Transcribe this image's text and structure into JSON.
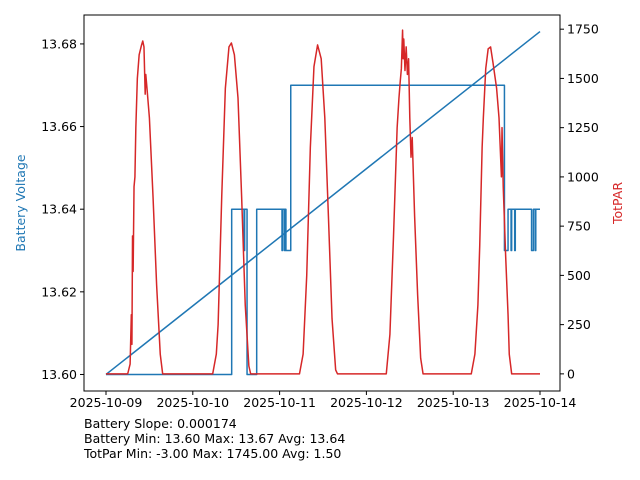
{
  "chart_data": {
    "type": "line",
    "x_tick_labels": [
      "2025-10-09",
      "2025-10-10",
      "2025-10-11",
      "2025-10-12",
      "2025-10-13",
      "2025-10-14"
    ],
    "x_range": [
      "2025-10-09",
      "2025-10-14"
    ],
    "left_axis": {
      "label": "Battery Voltage",
      "color": "#1f77b4",
      "ylim": [
        13.596,
        13.687
      ],
      "ticks": [
        "13.60",
        "13.62",
        "13.64",
        "13.66",
        "13.68"
      ]
    },
    "right_axis": {
      "label": "TotPAR",
      "color": "#d62728",
      "ylim": [
        -87,
        1822
      ],
      "ticks": [
        "0",
        "250",
        "500",
        "750",
        "1000",
        "1250",
        "1500",
        "1750"
      ]
    },
    "grid": false,
    "series": [
      {
        "axis": "left",
        "color": "#1f77b4",
        "style": "step",
        "points": [
          [
            "2025-10-09T00:00",
            13.6
          ],
          [
            "2025-10-10T10:30",
            13.6
          ],
          [
            "2025-10-10T10:45",
            13.64
          ],
          [
            "2025-10-10T14:00",
            13.64
          ],
          [
            "2025-10-10T14:10",
            13.63
          ],
          [
            "2025-10-10T14:20",
            13.64
          ],
          [
            "2025-10-10T14:40",
            13.64
          ],
          [
            "2025-10-10T15:00",
            13.6
          ],
          [
            "2025-10-10T17:30",
            13.6
          ],
          [
            "2025-10-10T17:40",
            13.64
          ],
          [
            "2025-10-11T00:30",
            13.64
          ],
          [
            "2025-10-11T00:40",
            13.63
          ],
          [
            "2025-10-11T00:50",
            13.64
          ],
          [
            "2025-10-11T01:20",
            13.63
          ],
          [
            "2025-10-11T01:30",
            13.64
          ],
          [
            "2025-10-11T01:45",
            13.63
          ],
          [
            "2025-10-11T03:00",
            13.63
          ],
          [
            "2025-10-11T03:05",
            13.67
          ],
          [
            "2025-10-13T14:00",
            13.67
          ],
          [
            "2025-10-13T14:10",
            13.63
          ],
          [
            "2025-10-13T15:00",
            13.63
          ],
          [
            "2025-10-13T15:10",
            13.64
          ],
          [
            "2025-10-13T16:00",
            13.63
          ],
          [
            "2025-10-13T16:10",
            13.64
          ],
          [
            "2025-10-13T17:00",
            13.63
          ],
          [
            "2025-10-13T17:10",
            13.64
          ],
          [
            "2025-10-13T21:30",
            13.64
          ],
          [
            "2025-10-13T21:40",
            13.63
          ],
          [
            "2025-10-13T22:10",
            13.64
          ],
          [
            "2025-10-13T22:40",
            13.63
          ],
          [
            "2025-10-13T22:50",
            13.64
          ],
          [
            "2025-10-14T00:00",
            13.64
          ]
        ]
      },
      {
        "axis": "left",
        "color": "#1f77b4",
        "style": "line",
        "points": [
          [
            "2025-10-09T00:00",
            13.6
          ],
          [
            "2025-10-14T00:00",
            13.683
          ]
        ]
      },
      {
        "axis": "right",
        "color": "#d62728",
        "style": "line",
        "points": [
          [
            "2025-10-09T00:00",
            0
          ],
          [
            "2025-10-09T06:00",
            0
          ],
          [
            "2025-10-09T06:40",
            50
          ],
          [
            "2025-10-09T07:00",
            300
          ],
          [
            "2025-10-09T07:10",
            150
          ],
          [
            "2025-10-09T07:20",
            700
          ],
          [
            "2025-10-09T07:30",
            520
          ],
          [
            "2025-10-09T07:45",
            950
          ],
          [
            "2025-10-09T08:00",
            1000
          ],
          [
            "2025-10-09T08:15",
            1250
          ],
          [
            "2025-10-09T08:40",
            1500
          ],
          [
            "2025-10-09T09:10",
            1620
          ],
          [
            "2025-10-09T09:50",
            1670
          ],
          [
            "2025-10-09T10:10",
            1690
          ],
          [
            "2025-10-09T10:30",
            1660
          ],
          [
            "2025-10-09T10:50",
            1420
          ],
          [
            "2025-10-09T11:00",
            1520
          ],
          [
            "2025-10-09T11:20",
            1450
          ],
          [
            "2025-10-09T12:00",
            1300
          ],
          [
            "2025-10-09T13:00",
            900
          ],
          [
            "2025-10-09T14:00",
            450
          ],
          [
            "2025-10-09T15:00",
            100
          ],
          [
            "2025-10-09T15:40",
            0
          ],
          [
            "2025-10-10T05:30",
            0
          ],
          [
            "2025-10-10T06:30",
            100
          ],
          [
            "2025-10-10T07:00",
            250
          ],
          [
            "2025-10-10T08:00",
            900
          ],
          [
            "2025-10-10T09:00",
            1450
          ],
          [
            "2025-10-10T10:00",
            1660
          ],
          [
            "2025-10-10T10:40",
            1680
          ],
          [
            "2025-10-10T11:30",
            1620
          ],
          [
            "2025-10-10T12:30",
            1400
          ],
          [
            "2025-10-10T13:30",
            900
          ],
          [
            "2025-10-10T14:30",
            350
          ],
          [
            "2025-10-10T15:30",
            40
          ],
          [
            "2025-10-10T16:00",
            0
          ],
          [
            "2025-10-11T05:30",
            0
          ],
          [
            "2025-10-11T06:30",
            100
          ],
          [
            "2025-10-11T07:30",
            500
          ],
          [
            "2025-10-11T08:30",
            1150
          ],
          [
            "2025-10-11T09:30",
            1560
          ],
          [
            "2025-10-11T10:30",
            1670
          ],
          [
            "2025-10-11T11:30",
            1600
          ],
          [
            "2025-10-11T12:30",
            1300
          ],
          [
            "2025-10-11T13:30",
            800
          ],
          [
            "2025-10-11T14:30",
            280
          ],
          [
            "2025-10-11T15:30",
            20
          ],
          [
            "2025-10-11T16:00",
            0
          ],
          [
            "2025-10-12T05:30",
            0
          ],
          [
            "2025-10-12T06:30",
            200
          ],
          [
            "2025-10-12T07:30",
            700
          ],
          [
            "2025-10-12T08:30",
            1250
          ],
          [
            "2025-10-12T09:00",
            1400
          ],
          [
            "2025-10-12T09:20",
            1480
          ],
          [
            "2025-10-12T09:40",
            1550
          ],
          [
            "2025-10-12T10:00",
            1745
          ],
          [
            "2025-10-12T10:10",
            1600
          ],
          [
            "2025-10-12T10:20",
            1700
          ],
          [
            "2025-10-12T10:40",
            1540
          ],
          [
            "2025-10-12T11:00",
            1660
          ],
          [
            "2025-10-12T11:20",
            1520
          ],
          [
            "2025-10-12T11:40",
            1600
          ],
          [
            "2025-10-12T12:00",
            1300
          ],
          [
            "2025-10-12T12:20",
            1100
          ],
          [
            "2025-10-12T12:40",
            1200
          ],
          [
            "2025-10-12T13:20",
            800
          ],
          [
            "2025-10-12T14:10",
            400
          ],
          [
            "2025-10-12T15:00",
            80
          ],
          [
            "2025-10-12T15:40",
            0
          ],
          [
            "2025-10-13T05:00",
            0
          ],
          [
            "2025-10-13T06:00",
            100
          ],
          [
            "2025-10-13T06:50",
            350
          ],
          [
            "2025-10-13T07:20",
            650
          ],
          [
            "2025-10-13T07:40",
            900
          ],
          [
            "2025-10-13T08:00",
            1150
          ],
          [
            "2025-10-13T08:20",
            1300
          ],
          [
            "2025-10-13T09:00",
            1550
          ],
          [
            "2025-10-13T09:40",
            1650
          ],
          [
            "2025-10-13T10:20",
            1660
          ],
          [
            "2025-10-13T11:00",
            1580
          ],
          [
            "2025-10-13T12:00",
            1450
          ],
          [
            "2025-10-13T12:40",
            1300
          ],
          [
            "2025-10-13T13:20",
            1000
          ],
          [
            "2025-10-13T13:30",
            1250
          ],
          [
            "2025-10-13T13:50",
            950
          ],
          [
            "2025-10-13T14:30",
            600
          ],
          [
            "2025-10-13T15:10",
            300
          ],
          [
            "2025-10-13T15:30",
            100
          ],
          [
            "2025-10-13T16:10",
            0
          ],
          [
            "2025-10-14T00:00",
            0
          ]
        ]
      }
    ]
  },
  "stats": {
    "line1": "Battery Slope: 0.000174",
    "line2": "Battery Min: 13.60 Max: 13.67 Avg: 13.64",
    "line3": "TotPar Min: -3.00 Max: 1745.00 Avg: 1.50"
  }
}
